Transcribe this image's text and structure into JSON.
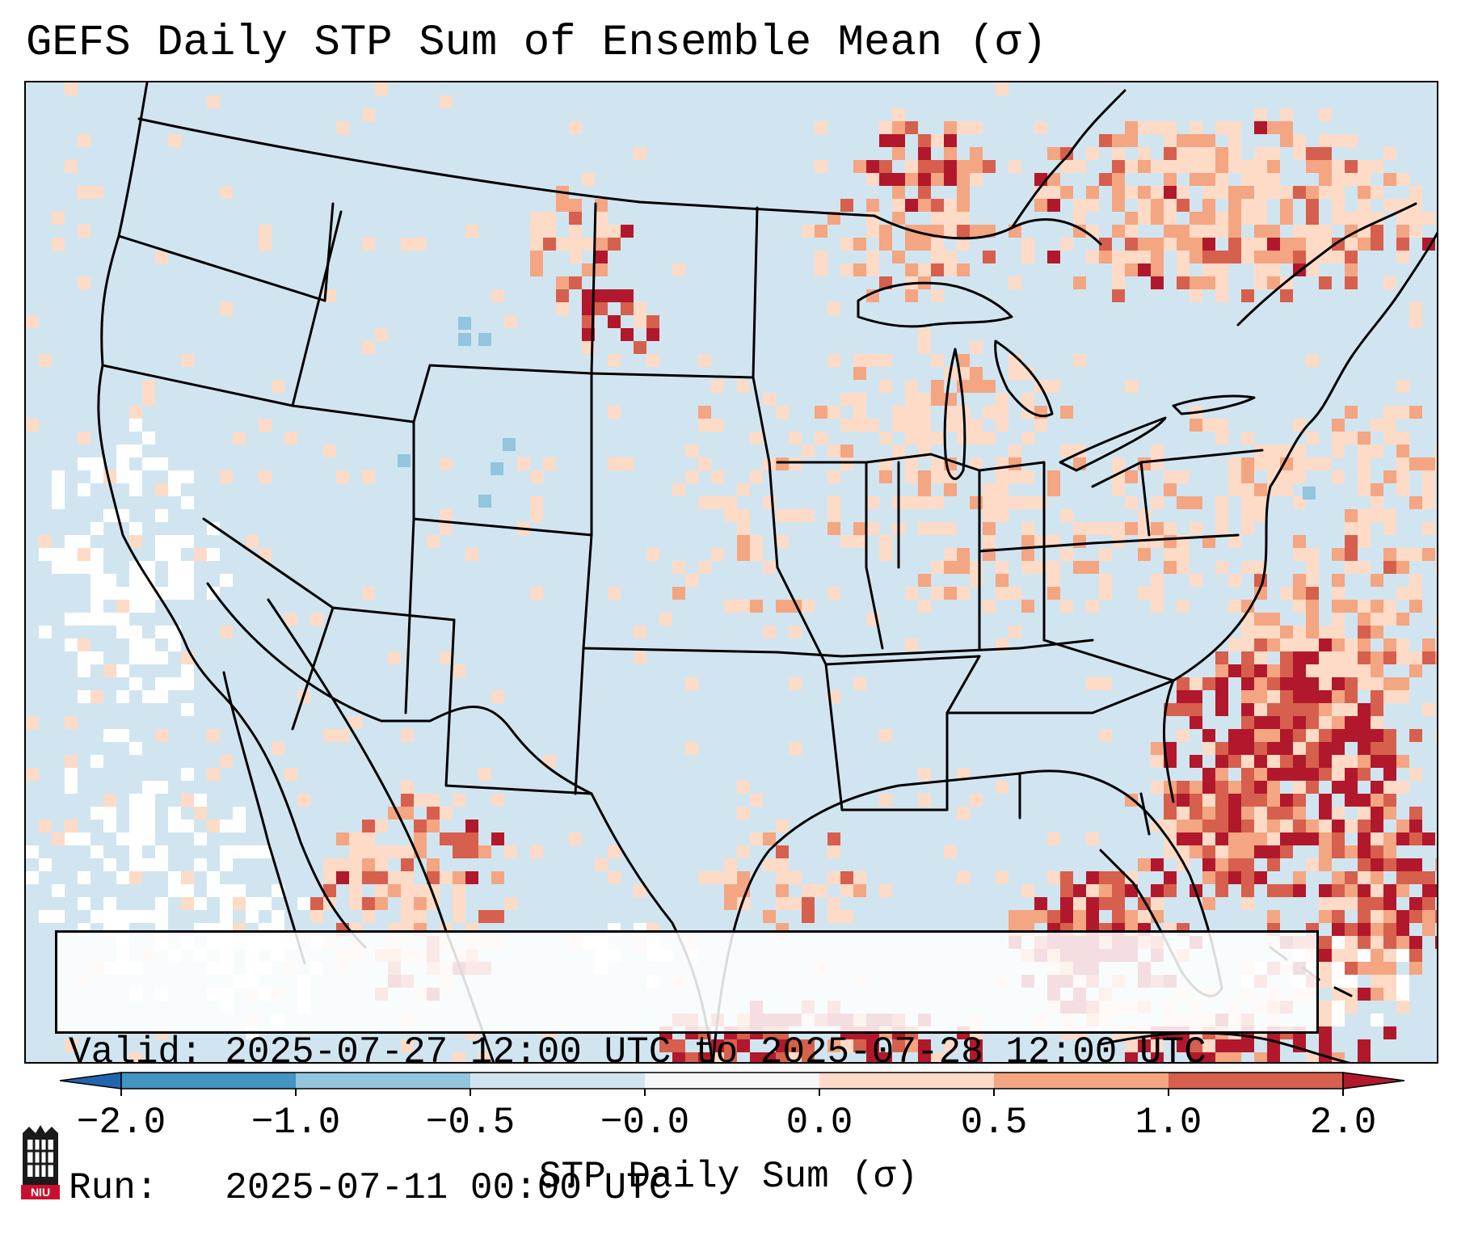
{
  "title": "GEFS Daily STP Sum of Ensemble Mean (σ)",
  "info": {
    "valid_line": "Valid: 2025-07-27 12:00 UTC to 2025-07-28 12:00 UTC",
    "run_line": "Run:   2025-07-11 00:00 UTC"
  },
  "colorbar": {
    "label": "STP Daily Sum (σ)",
    "ticks": [
      "−2.0",
      "−1.0",
      "−0.5",
      "−0.0",
      "0.0",
      "0.5",
      "1.0",
      "2.0"
    ],
    "colors": [
      "#4393c3",
      "#92c5de",
      "#d1e5f0",
      "#f7f7f7",
      "#fddbc7",
      "#f4a582",
      "#d6604d",
      "#b2182b"
    ],
    "extend_low_color": "#2166ac",
    "extend_high_color": "#b2182b"
  },
  "map": {
    "background_color": "#d1e5f0",
    "boundary_color": "#000000",
    "region": "Continental United States and adjacent Canada, Mexico, Gulf of Mexico, western Atlantic"
  },
  "logo": {
    "text": "NIU",
    "icon": "niu-castle-logo-icon"
  }
}
